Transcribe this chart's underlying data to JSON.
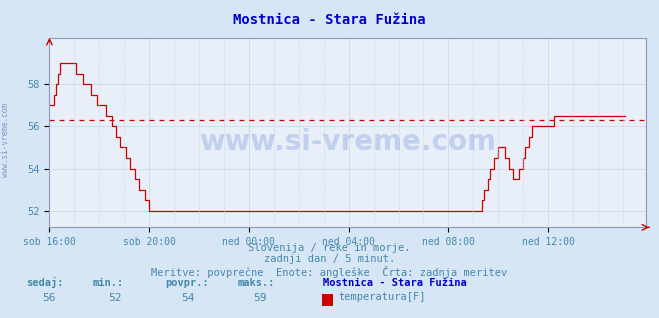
{
  "title": "Mostnica - Stara Fužina",
  "title_color": "#0000cc",
  "bg_color": "#d6e6f5",
  "plot_bg_color": "#e8eff8",
  "line_color": "#cc0000",
  "avg_line_color": "#cc0000",
  "avg_line_value": 56.3,
  "xlim": [
    0,
    287
  ],
  "ylim": [
    51.2,
    60.2
  ],
  "yticks": [
    52,
    54,
    56,
    58
  ],
  "xtick_labels": [
    "sob 16:00",
    "sob 20:00",
    "ned 00:00",
    "ned 04:00",
    "ned 08:00",
    "ned 12:00"
  ],
  "xtick_positions": [
    0,
    48,
    96,
    144,
    192,
    240
  ],
  "grid_color": "#c8d4e4",
  "axis_color": "#8899bb",
  "text_color": "#4488aa",
  "footer_line1": "Slovenija / reke in morje.",
  "footer_line2": "zadnji dan / 5 minut.",
  "footer_line3": "Meritve: povprečne  Enote: angleške  Črta: zadnja meritev",
  "legend_station": "Mostnica - Stara Fužina",
  "legend_param": "temperatura[F]",
  "legend_color": "#cc0000",
  "stat_labels": [
    "sedaj:",
    "min.:",
    "povpr.:",
    "maks.:"
  ],
  "stat_values": [
    "56",
    "52",
    "54",
    "59"
  ],
  "watermark": "www.si-vreme.com",
  "ylabel_text": "www.si-vreme.com",
  "y_values": [
    57,
    57,
    57.5,
    58,
    58.5,
    59,
    59,
    59,
    59,
    59,
    59,
    59,
    59,
    58.5,
    58.5,
    58.5,
    58,
    58,
    58,
    58,
    57.5,
    57.5,
    57.5,
    57,
    57,
    57,
    57,
    56.5,
    56.5,
    56.5,
    56,
    56,
    55.5,
    55.5,
    55,
    55,
    55,
    54.5,
    54.5,
    54,
    54,
    53.5,
    53.5,
    53,
    53,
    53,
    52.5,
    52.5,
    52,
    52,
    52,
    52,
    52,
    52,
    52,
    52,
    52,
    52,
    52,
    52,
    52,
    52,
    52,
    52,
    52,
    52,
    52,
    52,
    52,
    52,
    52,
    52,
    52,
    52,
    52,
    52,
    52,
    52,
    52,
    52,
    52,
    52,
    52,
    52,
    52,
    52,
    52,
    52,
    52,
    52,
    52,
    52,
    52,
    52,
    52,
    52,
    52,
    52,
    52,
    52,
    52,
    52,
    52,
    52,
    52,
    52,
    52,
    52,
    52,
    52,
    52,
    52,
    52,
    52,
    52,
    52,
    52,
    52,
    52,
    52,
    52,
    52,
    52,
    52,
    52,
    52,
    52,
    52,
    52,
    52,
    52,
    52,
    52,
    52,
    52,
    52,
    52,
    52,
    52,
    52,
    52,
    52,
    52,
    52,
    52,
    52,
    52,
    52,
    52,
    52,
    52,
    52,
    52,
    52,
    52,
    52,
    52,
    52,
    52,
    52,
    52,
    52,
    52,
    52,
    52,
    52,
    52,
    52,
    52,
    52,
    52,
    52,
    52,
    52,
    52,
    52,
    52,
    52,
    52,
    52,
    52,
    52,
    52,
    52,
    52,
    52,
    52,
    52,
    52,
    52,
    52,
    52,
    52,
    52,
    52,
    52,
    52,
    52,
    52,
    52,
    52,
    52,
    52,
    52,
    52,
    52,
    52,
    52,
    52.5,
    53,
    53,
    53.5,
    54,
    54,
    54.5,
    54.5,
    55,
    55,
    55,
    54.5,
    54.5,
    54,
    54,
    53.5,
    53.5,
    53.5,
    54,
    54,
    54.5,
    55,
    55,
    55.5,
    56,
    56,
    56,
    56,
    56,
    56,
    56,
    56,
    56,
    56,
    56,
    56.5,
    56.5,
    56.5,
    56.5,
    56.5,
    56.5,
    56.5,
    56.5,
    56.5,
    56.5,
    56.5,
    56.5,
    56.5,
    56.5,
    56.5,
    56.5,
    56.5,
    56.5,
    56.5,
    56.5,
    56.5,
    56.5,
    56.5,
    56.5,
    56.5,
    56.5,
    56.5,
    56.5,
    56.5,
    56.5,
    56.5,
    56.5,
    56.5,
    56.5,
    56.5
  ]
}
